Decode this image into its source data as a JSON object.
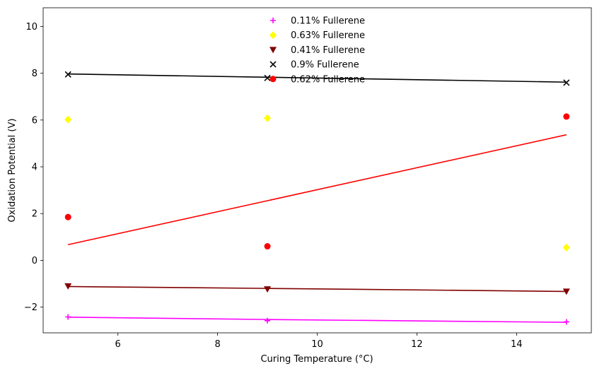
{
  "chart_data": {
    "type": "scatter",
    "title": "",
    "xlabel": "Curing Temperature (°C)",
    "ylabel": "Oxidation Potential (V)",
    "xlim": [
      4.5,
      15.5
    ],
    "ylim": [
      -3.1,
      10.8
    ],
    "xticks": [
      6,
      8,
      10,
      12,
      14
    ],
    "xtick_labels": [
      "6",
      "8",
      "10",
      "12",
      "14"
    ],
    "yticks": [
      -2,
      0,
      2,
      4,
      6,
      8,
      10
    ],
    "ytick_labels": [
      "−2",
      "0",
      "2",
      "4",
      "6",
      "8",
      "10"
    ],
    "grid": false,
    "legend_position": "top-center",
    "x": [
      5,
      9,
      15
    ],
    "series": [
      {
        "name": "0.11% Fullerene",
        "color": "#ff00ff",
        "marker": "plus",
        "points": [
          -2.42,
          -2.58,
          -2.63
        ],
        "trendline": [
          -2.43,
          -2.53,
          -2.65
        ]
      },
      {
        "name": "0.63% Fullerene",
        "color": "#ffff00",
        "marker": "diamond",
        "points": [
          6.02,
          6.08,
          0.55
        ],
        "trendline": null
      },
      {
        "name": "0.41% Fullerene",
        "color": "#800000",
        "marker": "triangle-down",
        "points": [
          -1.1,
          -1.23,
          -1.33
        ],
        "trendline": [
          -1.12,
          -1.2,
          -1.33
        ]
      },
      {
        "name": "0.9% Fullerene",
        "color": "#000000",
        "marker": "x",
        "points": [
          7.95,
          7.8,
          7.6
        ],
        "trendline": [
          7.97,
          7.83,
          7.62
        ]
      },
      {
        "name": "0.62% Fullerene",
        "color": "#ff0000",
        "marker": "circle",
        "points": [
          1.85,
          0.6,
          6.15
        ],
        "trendline": [
          0.67,
          2.55,
          5.37
        ]
      }
    ]
  }
}
